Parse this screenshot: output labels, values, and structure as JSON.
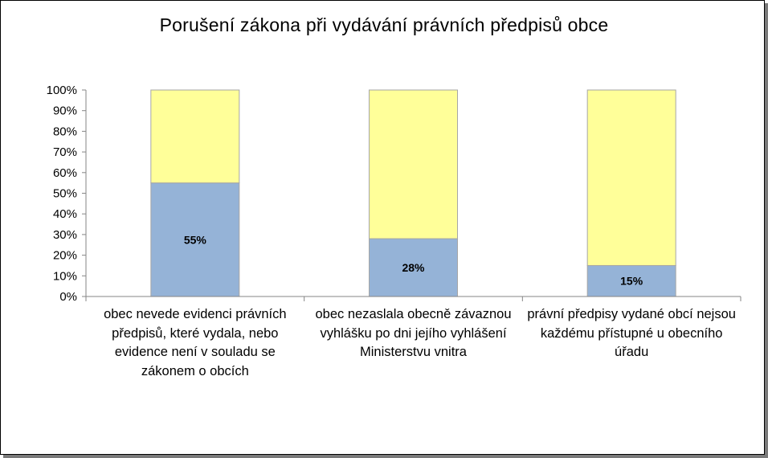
{
  "chart_data": {
    "type": "bar",
    "stacked": true,
    "title": "Porušení zákona při vydávání právních předpisů obce",
    "xlabel": "",
    "ylabel": "",
    "categories": [
      "obec nevede evidenci právních předpisů, které vydala, nebo evidence není v souladu se zákonem o obcích",
      "obec nezaslala obecně závaznou vyhlášku po dni jejího vyhlášení Ministerstvu vnitra",
      "právní předpisy vydané obcí nejsou každému přístupné u obecního úřadu"
    ],
    "series": [
      {
        "values": [
          55,
          28,
          15
        ],
        "labels": [
          "55%",
          "28%",
          "15%"
        ],
        "color": "#95b3d7"
      },
      {
        "values": [
          45,
          72,
          85
        ],
        "color": "#ffff99"
      }
    ],
    "ylim": [
      0,
      100
    ],
    "yticks": [
      "0%",
      "10%",
      "20%",
      "30%",
      "40%",
      "50%",
      "60%",
      "70%",
      "80%",
      "90%",
      "100%"
    ],
    "grid": false,
    "legend": "none"
  }
}
